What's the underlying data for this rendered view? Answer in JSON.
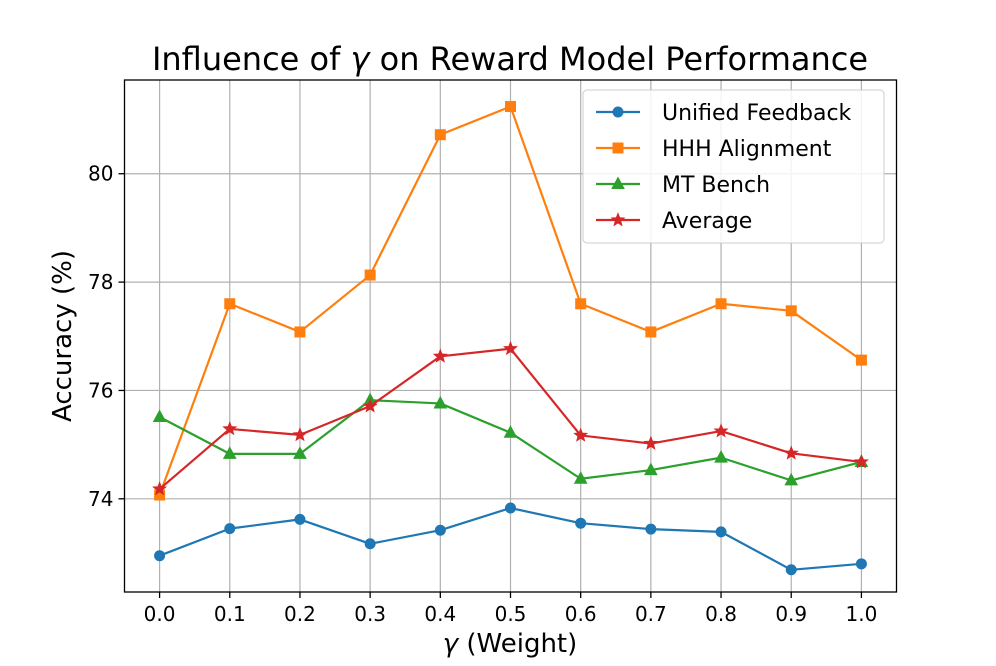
{
  "chart_data": {
    "type": "line",
    "title": "Influence of γ on Reward Model Performance",
    "title_prefix": "Influence of ",
    "title_symbol": "γ",
    "title_suffix": " on Reward Model Performance",
    "xlabel": "γ (Weight)",
    "xlabel_symbol": "γ",
    "xlabel_suffix": " (Weight)",
    "ylabel": "Accuracy (%)",
    "x": [
      0.0,
      0.1,
      0.2,
      0.3,
      0.4,
      0.5,
      0.6,
      0.7,
      0.8,
      0.9,
      1.0
    ],
    "x_tick_labels": [
      "0.0",
      "0.1",
      "0.2",
      "0.3",
      "0.4",
      "0.5",
      "0.6",
      "0.7",
      "0.8",
      "0.9",
      "1.0"
    ],
    "y_ticks": [
      74,
      76,
      78,
      80
    ],
    "y_tick_labels": [
      "74",
      "76",
      "78",
      "80"
    ],
    "xlim": [
      -0.05,
      1.05
    ],
    "ylim": [
      72.28,
      81.73
    ],
    "grid": true,
    "legend_position": "top-right",
    "series": [
      {
        "name": "Unified Feedback",
        "color": "#1f77b4",
        "marker": "circle",
        "values": [
          72.95,
          73.45,
          73.62,
          73.17,
          73.42,
          73.83,
          73.55,
          73.44,
          73.39,
          72.69,
          72.8
        ]
      },
      {
        "name": "HHH Alignment",
        "color": "#ff7f0e",
        "marker": "square",
        "values": [
          74.07,
          77.6,
          77.08,
          78.13,
          80.72,
          81.24,
          77.6,
          77.08,
          77.6,
          77.47,
          76.56
        ]
      },
      {
        "name": "MT Bench",
        "color": "#2ca02c",
        "marker": "triangle",
        "values": [
          75.51,
          74.83,
          74.83,
          75.82,
          75.76,
          75.22,
          74.37,
          74.53,
          74.76,
          74.34,
          74.68
        ]
      },
      {
        "name": "Average",
        "color": "#d62728",
        "marker": "star",
        "values": [
          74.18,
          75.29,
          75.18,
          75.71,
          76.63,
          76.77,
          75.17,
          75.02,
          75.25,
          74.84,
          74.68
        ]
      }
    ]
  }
}
